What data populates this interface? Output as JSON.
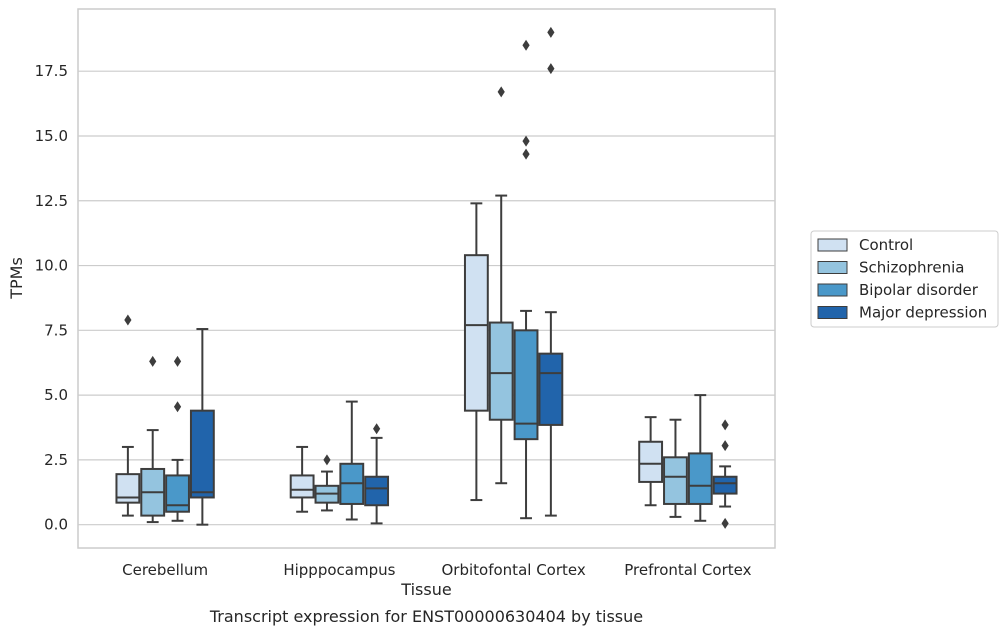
{
  "chart_data": {
    "type": "box",
    "xlabel": "Tissue",
    "ylabel": "TPMs",
    "caption": "Transcript expression for ENST00000630404 by tissue",
    "ylim": [
      -0.9,
      19.9
    ],
    "yticks": [
      0.0,
      2.5,
      5.0,
      7.5,
      10.0,
      12.5,
      15.0,
      17.5
    ],
    "ytick_labels": [
      "0.0",
      "2.5",
      "5.0",
      "7.5",
      "10.0",
      "12.5",
      "15.0",
      "17.5"
    ],
    "grid": "horizontal",
    "legend_position": "right",
    "categories": [
      "Cerebellum",
      "Hipppocampus",
      "Orbitofontal Cortex",
      "Prefrontal Cortex"
    ],
    "series": [
      {
        "name": "Control",
        "color": "#d0e1f2",
        "boxes": [
          {
            "whisker_low": 0.35,
            "q1": 0.85,
            "median": 1.05,
            "q3": 1.95,
            "whisker_high": 3.0,
            "outliers": [
              7.9
            ]
          },
          {
            "whisker_low": 0.5,
            "q1": 1.05,
            "median": 1.35,
            "q3": 1.9,
            "whisker_high": 3.0,
            "outliers": []
          },
          {
            "whisker_low": 0.95,
            "q1": 4.4,
            "median": 7.7,
            "q3": 10.4,
            "whisker_high": 12.4,
            "outliers": []
          },
          {
            "whisker_low": 0.75,
            "q1": 1.65,
            "median": 2.35,
            "q3": 3.2,
            "whisker_high": 4.15,
            "outliers": []
          }
        ]
      },
      {
        "name": "Schizophrenia",
        "color": "#94c4df",
        "boxes": [
          {
            "whisker_low": 0.1,
            "q1": 0.35,
            "median": 1.25,
            "q3": 2.15,
            "whisker_high": 3.65,
            "outliers": [
              6.3
            ]
          },
          {
            "whisker_low": 0.55,
            "q1": 0.85,
            "median": 1.2,
            "q3": 1.5,
            "whisker_high": 2.05,
            "outliers": [
              2.5
            ]
          },
          {
            "whisker_low": 1.6,
            "q1": 4.05,
            "median": 5.85,
            "q3": 7.8,
            "whisker_high": 12.7,
            "outliers": [
              16.7
            ]
          },
          {
            "whisker_low": 0.3,
            "q1": 0.8,
            "median": 1.85,
            "q3": 2.6,
            "whisker_high": 4.05,
            "outliers": []
          }
        ]
      },
      {
        "name": "Bipolar disorder",
        "color": "#4a98c9",
        "boxes": [
          {
            "whisker_low": 0.15,
            "q1": 0.5,
            "median": 0.75,
            "q3": 1.9,
            "whisker_high": 2.5,
            "outliers": [
              4.55,
              6.3
            ]
          },
          {
            "whisker_low": 0.2,
            "q1": 0.8,
            "median": 1.6,
            "q3": 2.35,
            "whisker_high": 4.75,
            "outliers": []
          },
          {
            "whisker_low": 0.25,
            "q1": 3.3,
            "median": 3.9,
            "q3": 7.5,
            "whisker_high": 8.25,
            "outliers": [
              14.3,
              14.8,
              18.5
            ]
          },
          {
            "whisker_low": 0.15,
            "q1": 0.8,
            "median": 1.5,
            "q3": 2.75,
            "whisker_high": 5.0,
            "outliers": []
          }
        ]
      },
      {
        "name": "Major depression",
        "color": "#2164ab",
        "boxes": [
          {
            "whisker_low": 0.0,
            "q1": 1.05,
            "median": 1.25,
            "q3": 4.4,
            "whisker_high": 7.55,
            "outliers": []
          },
          {
            "whisker_low": 0.05,
            "q1": 0.75,
            "median": 1.4,
            "q3": 1.85,
            "whisker_high": 3.35,
            "outliers": [
              3.7
            ]
          },
          {
            "whisker_low": 0.35,
            "q1": 3.85,
            "median": 5.85,
            "q3": 6.6,
            "whisker_high": 8.2,
            "outliers": [
              17.6,
              19.0
            ]
          },
          {
            "whisker_low": 0.7,
            "q1": 1.2,
            "median": 1.6,
            "q3": 1.85,
            "whisker_high": 2.25,
            "outliers": [
              0.05,
              3.05,
              3.85
            ]
          }
        ]
      }
    ]
  }
}
